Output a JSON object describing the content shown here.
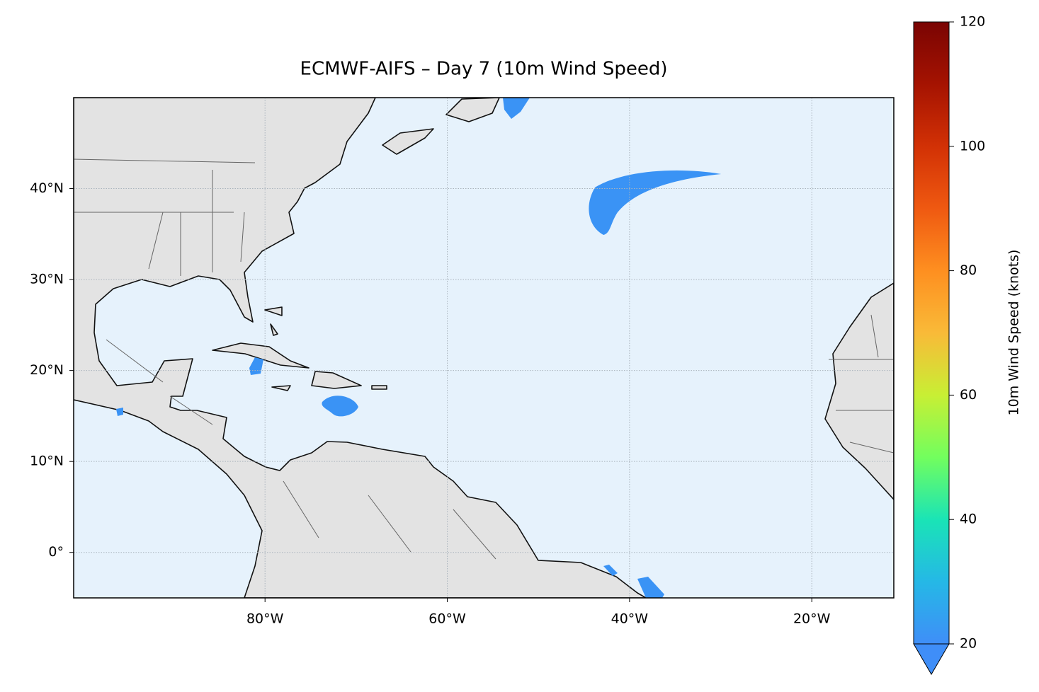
{
  "chart_data": {
    "type": "map",
    "title": "ECMWF-AIFS – Day 7 (10m Wind Speed)",
    "xlim": [
      -101,
      -11
    ],
    "ylim": [
      -5,
      50
    ],
    "xticks": [
      {
        "value": -80,
        "label": "80°W"
      },
      {
        "value": -60,
        "label": "60°W"
      },
      {
        "value": -40,
        "label": "40°W"
      },
      {
        "value": -20,
        "label": "20°W"
      }
    ],
    "yticks": [
      {
        "value": 0,
        "label": "0°"
      },
      {
        "value": 10,
        "label": "10°N"
      },
      {
        "value": 20,
        "label": "20°N"
      },
      {
        "value": 30,
        "label": "30°N"
      },
      {
        "value": 40,
        "label": "40°N"
      }
    ],
    "grid": true,
    "colorbar": {
      "label": "10m Wind Speed (knots)",
      "lim": [
        20,
        120
      ],
      "ticks": [
        20,
        40,
        60,
        80,
        100,
        120
      ],
      "colors": [
        "#3f8ef8",
        "#25b8e6",
        "#1ae4b6",
        "#72fe5e",
        "#c8ef34",
        "#f9ba38",
        "#fe8f20",
        "#ef5911",
        "#d23105",
        "#a51301",
        "#7a0403"
      ]
    }
  }
}
